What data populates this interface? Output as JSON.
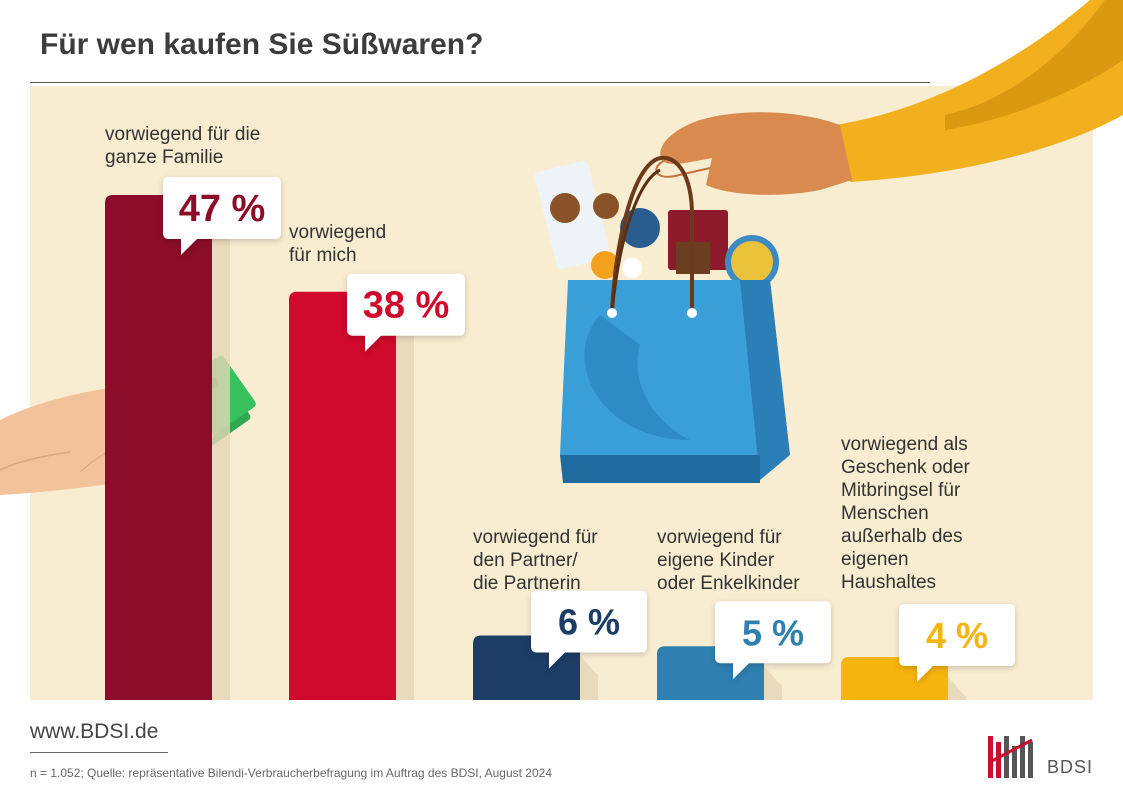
{
  "title": "Für wen kaufen Sie Süßwaren?",
  "chart_data": {
    "type": "bar",
    "title": "Für wen kaufen Sie Süßwaren?",
    "unit": "%",
    "ylim": [
      0,
      50
    ],
    "categories": [
      [
        "vorwiegend für die",
        "ganze Familie"
      ],
      [
        "vorwiegend",
        "für mich"
      ],
      [
        "vorwiegend für",
        "den Partner/",
        "die Partnerin"
      ],
      [
        "vorwiegend für",
        "eigene Kinder",
        "oder Enkelkinder"
      ],
      [
        "vorwiegend als",
        "Geschenk oder",
        "Mitbringsel für",
        "Menschen",
        "außerhalb des",
        "eigenen",
        "Haushaltes"
      ]
    ],
    "values": [
      47,
      38,
      6,
      5,
      4
    ],
    "value_labels": [
      "47 %",
      "38 %",
      "6 %",
      "5 %",
      "4 %"
    ],
    "colors": [
      "#8c0d2a",
      "#cf0a2c",
      "#1d3d66",
      "#2f80b0",
      "#f6b40e"
    ]
  },
  "footer": {
    "url": "www.BDSI.de",
    "source": "n = 1.052; Quelle: repräsentative Bilendi-Verbraucherbefragung im Auftrag des BDSI, August 2024",
    "logo": "BDSI"
  }
}
